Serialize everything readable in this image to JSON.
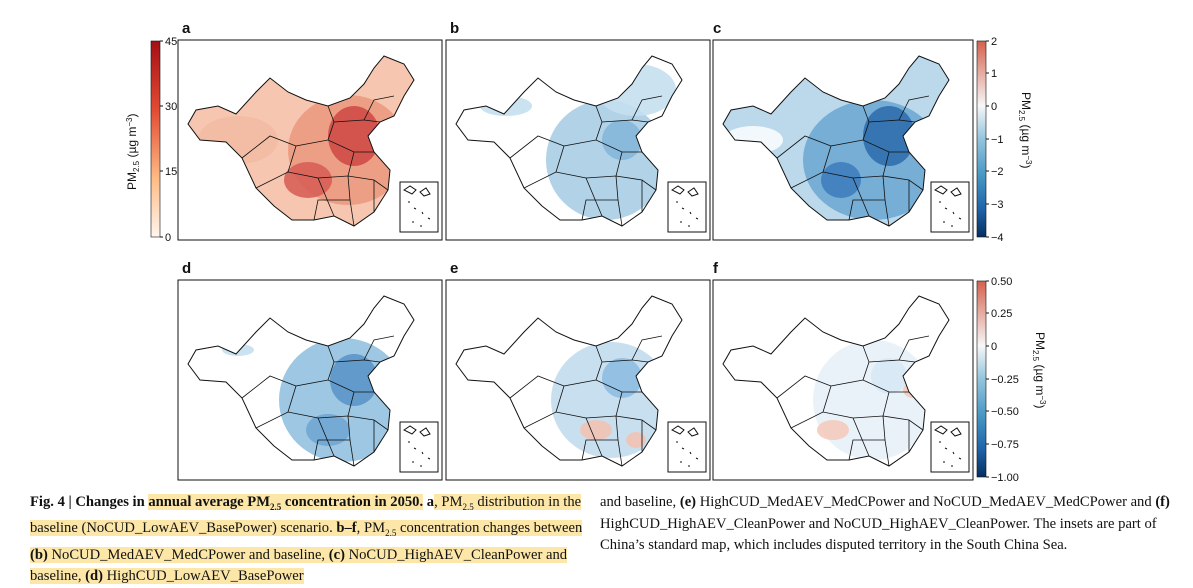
{
  "figure": {
    "panels": [
      {
        "label": "a",
        "type": "baseline"
      },
      {
        "label": "b",
        "type": "change",
        "pattern": "mild"
      },
      {
        "label": "c",
        "type": "change",
        "pattern": "strong"
      },
      {
        "label": "d",
        "type": "change",
        "pattern": "medium"
      },
      {
        "label": "e",
        "type": "change",
        "pattern": "mixed"
      },
      {
        "label": "f",
        "type": "change",
        "pattern": "small"
      }
    ],
    "colorbar_a": {
      "ticks": [
        "45",
        "30",
        "15",
        "0"
      ],
      "label_main": "PM",
      "label_sub": "2.5",
      "label_unit": " (µg m",
      "label_exp": "−3",
      "label_close": ")",
      "colors": [
        "#a50f15",
        "#e34a33",
        "#fdbb84",
        "#fee8c8"
      ]
    },
    "colorbar_c": {
      "ticks": [
        "2",
        "1",
        "0",
        "−1",
        "−2",
        "−3",
        "−4"
      ],
      "label_main": "PM",
      "label_sub": "2.5",
      "label_unit": " (µg m",
      "label_exp": "−3",
      "label_close": ")",
      "colors": [
        "#d6604d",
        "#f7f7f7",
        "#92c5de",
        "#4393c3",
        "#2166ac",
        "#053061"
      ]
    },
    "colorbar_f": {
      "ticks": [
        "0.50",
        "0.25",
        "0",
        "−0.25",
        "−0.50",
        "−0.75",
        "−1.00"
      ],
      "label_main": "PM",
      "label_sub": "2.5",
      "label_unit": " (µg m",
      "label_exp": "−3",
      "label_close": ")",
      "colors": [
        "#d6604d",
        "#f7f7f7",
        "#92c5de",
        "#4393c3",
        "#2166ac",
        "#053061"
      ]
    }
  },
  "caption": {
    "fig_label": "Fig. 4 | ",
    "title_pre": "Changes in ",
    "title_hl": "annual average PM",
    "title_sub": "2.5",
    "title_post": " concentration in 2050.",
    "a_label": " a",
    "t1": ", PM",
    "t1_sub": "2.5",
    "t2": " distribution in the baseline (NoCUD_LowAEV_BasePower) scenario. ",
    "bf_label": "b–f",
    "t3": ", PM",
    "t3_sub": "2.5",
    "t4": " concentration changes between ",
    "b_lbl": "(b)",
    "t5": " NoCUD_MedAEV_MedCPower and baseline, ",
    "c_lbl": "(c)",
    "t6": " NoCUD_HighAEV_CleanPower and baseline, ",
    "d_lbl": "(d)",
    "t7": " HighCUD_LowAEV_BasePower",
    "t8": "and baseline, ",
    "e_lbl": "(e)",
    "t9": " HighCUD_MedAEV_MedCPower and NoCUD_MedAEV_MedCPower and ",
    "f_lbl": "(f)",
    "t10": " HighCUD_HighAEV_CleanPower and NoCUD_HighAEV_CleanPower. The insets are part of China’s standard map, which includes disputed territory in the South China Sea."
  }
}
